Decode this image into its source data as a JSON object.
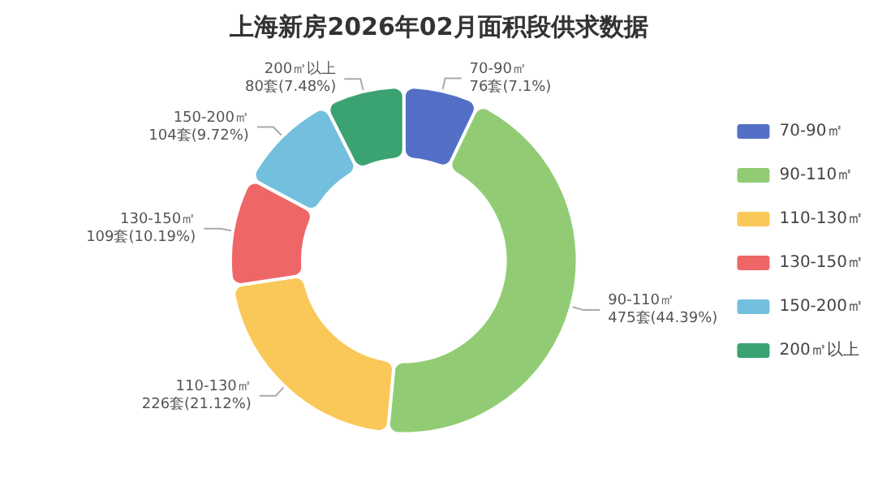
{
  "chart_data": {
    "type": "donut",
    "title": "上海新房2026年02月面积段供求数据",
    "categories": [
      "70-90㎡",
      "90-110㎡",
      "110-130㎡",
      "130-150㎡",
      "150-200㎡",
      "200㎡以上"
    ],
    "values": [
      76,
      475,
      226,
      109,
      104,
      80
    ],
    "value_labels": [
      "76套(7.1%)",
      "475套(44.39%)",
      "226套(21.12%)",
      "109套(10.19%)",
      "104套(9.72%)",
      "80套(7.48%)"
    ],
    "colors": [
      "#5470c6",
      "#91cc75",
      "#fac858",
      "#ee6666",
      "#73c0de",
      "#3ba272"
    ],
    "legend": "right"
  }
}
